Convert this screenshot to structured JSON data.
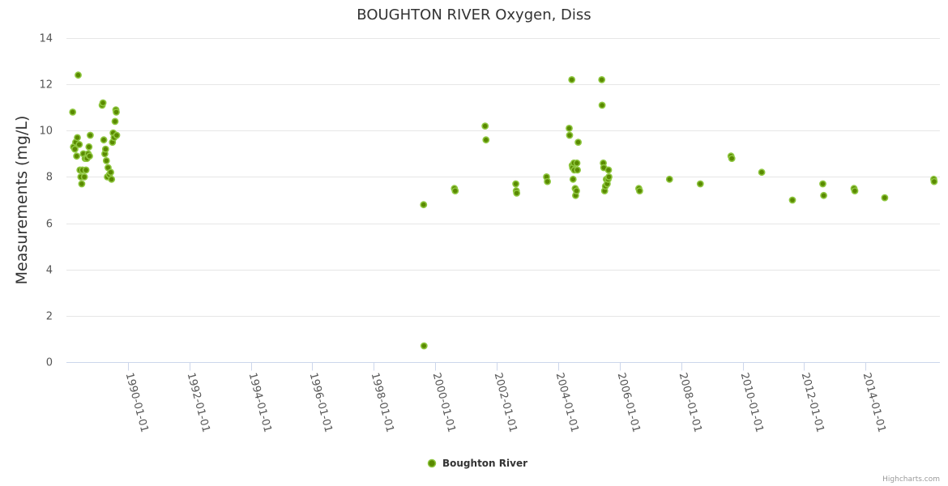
{
  "chart_data": {
    "type": "scatter",
    "title": "BOUGHTON RIVER Oxygen, Diss",
    "ylabel": "Measurements (mg/L)",
    "xlabel": "",
    "ylim": [
      0,
      14
    ],
    "yticks": [
      0,
      2,
      4,
      6,
      8,
      10,
      12,
      14
    ],
    "xlim": [
      "1988-01-01",
      "2016-06-01"
    ],
    "xticks": [
      "1990-01-01",
      "1992-01-01",
      "1994-01-01",
      "1996-01-01",
      "1998-01-01",
      "2000-01-01",
      "2002-01-01",
      "2004-01-01",
      "2006-01-01",
      "2008-01-01",
      "2010-01-01",
      "2012-01-01",
      "2014-01-01"
    ],
    "grid": true,
    "legend": "bottom-center",
    "colors": {
      "marker_fill": "#5a8a00",
      "marker_stroke": "#8ec63f"
    },
    "series": [
      {
        "name": "Boughton River",
        "points": [
          [
            "1988-03-15",
            10.8
          ],
          [
            "1988-03-25",
            9.3
          ],
          [
            "1988-04-10",
            9.2
          ],
          [
            "1988-04-20",
            9.5
          ],
          [
            "1988-05-01",
            8.9
          ],
          [
            "1988-05-10",
            9.7
          ],
          [
            "1988-05-20",
            12.4
          ],
          [
            "1988-06-01",
            9.4
          ],
          [
            "1988-06-10",
            8.3
          ],
          [
            "1988-06-20",
            8.0
          ],
          [
            "1988-07-01",
            7.7
          ],
          [
            "1988-07-10",
            8.3
          ],
          [
            "1988-07-20",
            9.0
          ],
          [
            "1988-08-01",
            8.0
          ],
          [
            "1988-08-10",
            8.8
          ],
          [
            "1988-08-20",
            8.3
          ],
          [
            "1988-09-01",
            8.8
          ],
          [
            "1988-09-15",
            9.0
          ],
          [
            "1988-09-25",
            9.3
          ],
          [
            "1988-10-01",
            8.9
          ],
          [
            "1988-10-10",
            9.8
          ],
          [
            "1989-03-01",
            11.1
          ],
          [
            "1989-03-10",
            11.2
          ],
          [
            "1989-03-20",
            9.6
          ],
          [
            "1989-04-01",
            9.0
          ],
          [
            "1989-04-10",
            9.2
          ],
          [
            "1989-04-20",
            8.7
          ],
          [
            "1989-05-01",
            8.0
          ],
          [
            "1989-05-10",
            8.4
          ],
          [
            "1989-05-25",
            8.1
          ],
          [
            "1989-06-10",
            8.2
          ],
          [
            "1989-06-20",
            7.9
          ],
          [
            "1989-07-01",
            9.5
          ],
          [
            "1989-07-10",
            9.9
          ],
          [
            "1989-07-20",
            9.7
          ],
          [
            "1989-08-01",
            10.4
          ],
          [
            "1989-08-10",
            10.9
          ],
          [
            "1989-08-15",
            10.8
          ],
          [
            "1989-08-20",
            9.8
          ],
          [
            "1999-08-15",
            6.8
          ],
          [
            "1999-08-20",
            0.7
          ],
          [
            "2000-08-15",
            7.5
          ],
          [
            "2000-08-25",
            7.4
          ],
          [
            "2001-08-15",
            10.2
          ],
          [
            "2001-08-25",
            9.6
          ],
          [
            "2002-08-15",
            7.7
          ],
          [
            "2002-08-20",
            7.4
          ],
          [
            "2002-08-25",
            7.3
          ],
          [
            "2003-08-15",
            8.0
          ],
          [
            "2003-08-25",
            7.8
          ],
          [
            "2004-05-10",
            10.1
          ],
          [
            "2004-05-15",
            9.8
          ],
          [
            "2004-06-10",
            12.2
          ],
          [
            "2004-06-15",
            8.5
          ],
          [
            "2004-06-20",
            8.4
          ],
          [
            "2004-06-25",
            7.9
          ],
          [
            "2004-07-05",
            8.6
          ],
          [
            "2004-07-10",
            8.3
          ],
          [
            "2004-07-20",
            7.5
          ],
          [
            "2004-07-25",
            7.2
          ],
          [
            "2004-08-05",
            7.4
          ],
          [
            "2004-08-10",
            8.6
          ],
          [
            "2004-08-15",
            8.3
          ],
          [
            "2004-08-25",
            9.5
          ],
          [
            "2005-06-01",
            12.2
          ],
          [
            "2005-06-05",
            11.1
          ],
          [
            "2005-06-20",
            8.6
          ],
          [
            "2005-06-25",
            8.4
          ],
          [
            "2005-07-05",
            7.4
          ],
          [
            "2005-07-15",
            7.6
          ],
          [
            "2005-07-25",
            7.9
          ],
          [
            "2005-08-05",
            7.7
          ],
          [
            "2005-08-15",
            7.9
          ],
          [
            "2005-08-20",
            8.3
          ],
          [
            "2005-08-25",
            8.0
          ],
          [
            "2006-08-15",
            7.5
          ],
          [
            "2006-08-25",
            7.4
          ],
          [
            "2007-08-15",
            7.9
          ],
          [
            "2008-08-15",
            7.7
          ],
          [
            "2009-08-15",
            8.9
          ],
          [
            "2009-08-25",
            8.8
          ],
          [
            "2010-08-15",
            8.2
          ],
          [
            "2011-08-15",
            7.0
          ],
          [
            "2012-08-10",
            7.7
          ],
          [
            "2012-08-20",
            7.2
          ],
          [
            "2013-08-15",
            7.5
          ],
          [
            "2013-08-25",
            7.4
          ],
          [
            "2014-08-15",
            7.1
          ],
          [
            "2016-03-20",
            7.9
          ],
          [
            "2016-03-25",
            7.8
          ]
        ]
      }
    ]
  },
  "legend": {
    "label": "Boughton River"
  },
  "credits": "Highcharts.com"
}
